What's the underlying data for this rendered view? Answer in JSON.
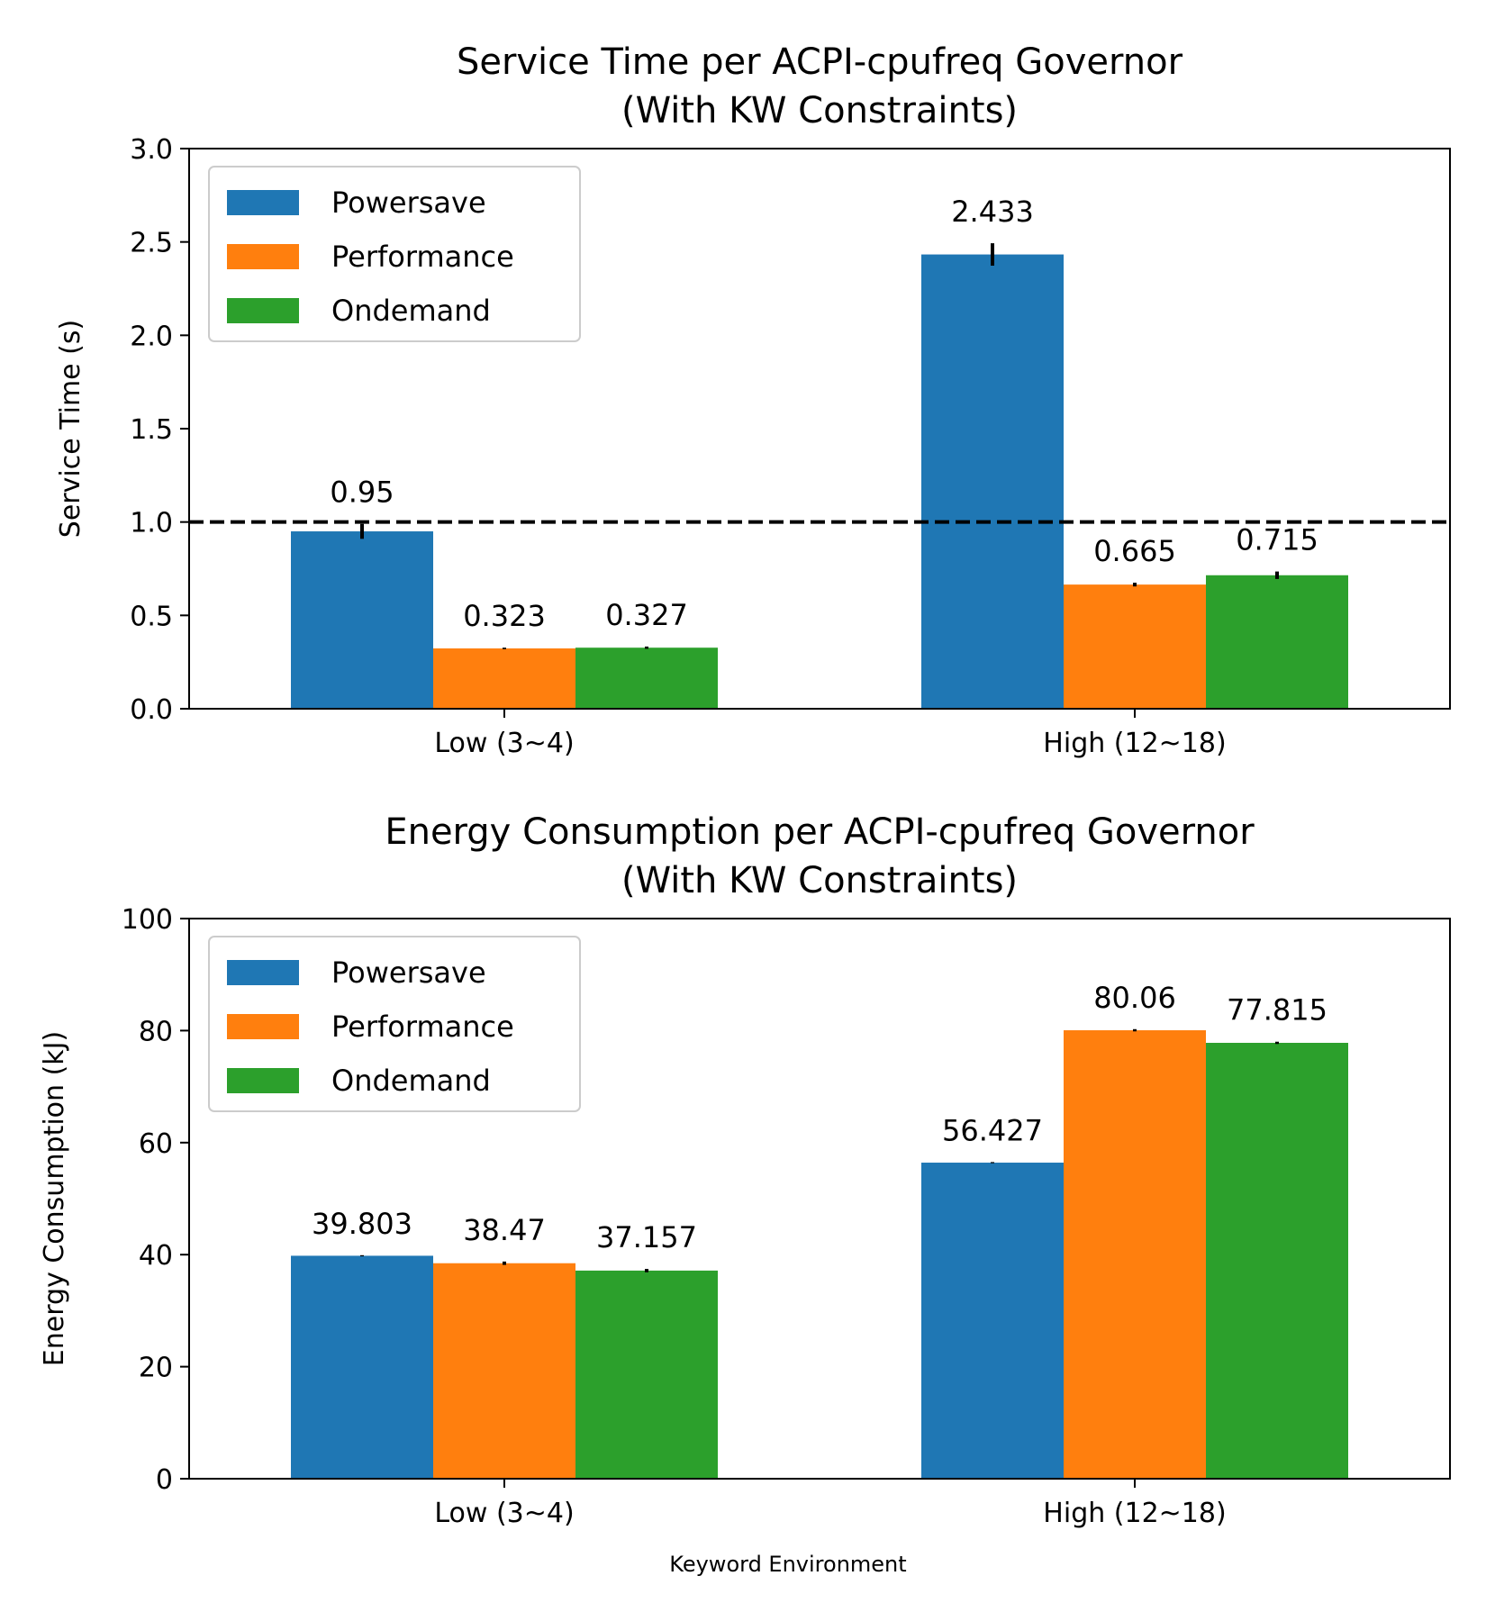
{
  "figure": {
    "xlabel": "Keyword Environment"
  },
  "chart_data": [
    {
      "type": "bar",
      "title": "Service Time per ACPI-cpufreq Governor",
      "subtitle": "(With KW Constraints)",
      "xlabel": "",
      "ylabel": "Service Time (s)",
      "ylim": [
        0,
        3.0
      ],
      "yticks": [
        "0.0",
        "0.5",
        "1.0",
        "1.5",
        "2.0",
        "2.5",
        "3.0"
      ],
      "categories": [
        "Low (3~4)",
        "High (12~18)"
      ],
      "reference_line": {
        "y": 1.0,
        "style": "dashed",
        "color": "#000000"
      },
      "legend_position": "top-left",
      "grid": false,
      "series": [
        {
          "name": "Powersave",
          "color": "#1f77b4",
          "values": [
            0.95,
            2.433
          ],
          "labels": [
            "0.95",
            "2.433"
          ],
          "errors": [
            0.04,
            0.06
          ]
        },
        {
          "name": "Performance",
          "color": "#ff7f0e",
          "values": [
            0.323,
            0.665
          ],
          "labels": [
            "0.323",
            "0.665"
          ],
          "errors": [
            0.004,
            0.01
          ]
        },
        {
          "name": "Ondemand",
          "color": "#2ca02c",
          "values": [
            0.327,
            0.715
          ],
          "labels": [
            "0.327",
            "0.715"
          ],
          "errors": [
            0.006,
            0.02
          ]
        }
      ]
    },
    {
      "type": "bar",
      "title": "Energy Consumption per ACPI-cpufreq Governor",
      "subtitle": "(With KW Constraints)",
      "xlabel": "Keyword Environment",
      "ylabel": "Energy Consumption (kJ)",
      "ylim": [
        0,
        100
      ],
      "yticks": [
        "0",
        "20",
        "40",
        "60",
        "80",
        "100"
      ],
      "categories": [
        "Low (3~4)",
        "High (12~18)"
      ],
      "legend_position": "top-left",
      "grid": false,
      "series": [
        {
          "name": "Powersave",
          "color": "#1f77b4",
          "values": [
            39.803,
            56.427
          ],
          "labels": [
            "39.803",
            "56.427"
          ],
          "errors": [
            0.1,
            0.1
          ]
        },
        {
          "name": "Performance",
          "color": "#ff7f0e",
          "values": [
            38.47,
            80.06
          ],
          "labels": [
            "38.47",
            "80.06"
          ],
          "errors": [
            0.3,
            0.2
          ]
        },
        {
          "name": "Ondemand",
          "color": "#2ca02c",
          "values": [
            37.157,
            77.815
          ],
          "labels": [
            "37.157",
            "77.815"
          ],
          "errors": [
            0.3,
            0.2
          ]
        }
      ]
    }
  ]
}
